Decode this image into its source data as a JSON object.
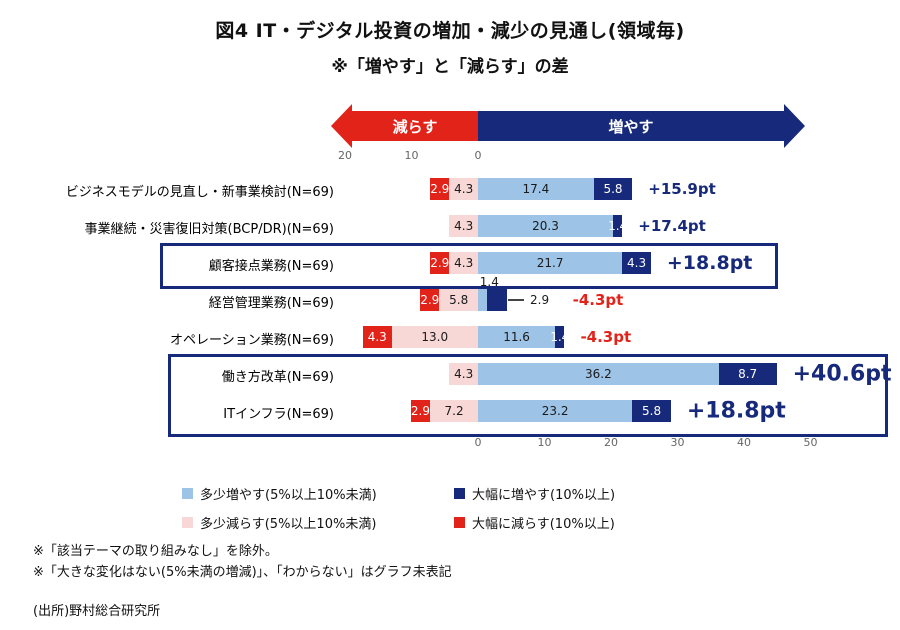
{
  "title": "図4 IT・デジタル投資の増加・減少の見通し(領域毎)",
  "subtitle": "※「増やす」と「減らす」の差",
  "arrow": {
    "left_label": "減らす",
    "right_label": "増やす"
  },
  "top_axis_ticks": [
    20,
    10,
    0
  ],
  "bottom_axis_ticks": [
    0,
    10,
    20,
    30,
    40,
    50
  ],
  "colors": {
    "pos_small": "#9dc3e6",
    "pos_large": "#17297a",
    "neg_small": "#f8d8d6",
    "neg_large": "#e2231a",
    "navy_text": "#17297a",
    "red_text": "#e2231a"
  },
  "chart_data": {
    "type": "bar",
    "orientation": "horizontal-diverging",
    "unit": "pt",
    "axis_range_neg": 20,
    "axis_range_pos": 50,
    "categories": [
      "ビジネスモデルの見直し・新事業検討(N=69)",
      "事業継続・災害復旧対策(BCP/DR)(N=69)",
      "顧客接点業務(N=69)",
      "経営管理業務(N=69)",
      "オペレーション業務(N=69)",
      "働き方改革(N=69)",
      "ITインフラ(N=69)"
    ],
    "series": [
      {
        "name": "大幅に減らす(10%以上)",
        "key": "neg_large",
        "values": [
          2.9,
          null,
          2.9,
          2.9,
          4.3,
          null,
          2.9
        ]
      },
      {
        "name": "多少減らす(5%以上10%未満)",
        "key": "neg_small",
        "values": [
          4.3,
          4.3,
          4.3,
          5.8,
          13.0,
          4.3,
          7.2
        ]
      },
      {
        "name": "多少増やす(5%以上10%未満)",
        "key": "pos_small",
        "values": [
          17.4,
          20.3,
          21.7,
          1.4,
          11.6,
          36.2,
          23.2
        ]
      },
      {
        "name": "大幅に増やす(10%以上)",
        "key": "pos_large",
        "values": [
          5.8,
          1.4,
          4.3,
          2.9,
          1.4,
          8.7,
          5.8
        ]
      }
    ],
    "diffs": [
      {
        "label": "+15.9pt",
        "color": "navy",
        "size": "normal"
      },
      {
        "label": "+17.4pt",
        "color": "navy",
        "size": "normal"
      },
      {
        "label": "+18.8pt",
        "color": "navy",
        "size": "medium"
      },
      {
        "label": "-4.3pt",
        "color": "red",
        "size": "normal"
      },
      {
        "label": "-4.3pt",
        "color": "red",
        "size": "normal"
      },
      {
        "label": "+40.6pt",
        "color": "navy",
        "size": "large"
      },
      {
        "label": "+18.8pt",
        "color": "navy",
        "size": "large"
      }
    ],
    "highlight_boxes": [
      {
        "from": 2,
        "to": 2
      },
      {
        "from": 5,
        "to": 6
      }
    ]
  },
  "legend": [
    {
      "label": "多少増やす(5%以上10%未満)",
      "color_key": "pos_small"
    },
    {
      "label": "大幅に増やす(10%以上)",
      "color_key": "pos_large"
    },
    {
      "label": "多少減らす(5%以上10%未満)",
      "color_key": "neg_small"
    },
    {
      "label": "大幅に減らす(10%以上)",
      "color_key": "neg_large"
    }
  ],
  "notes": [
    "※「該当テーマの取り組みなし」を除外。",
    "※「大きな変化はない(5%未満の増減)」、「わからない」はグラフ未表記"
  ],
  "source": "(出所)野村総合研究所"
}
